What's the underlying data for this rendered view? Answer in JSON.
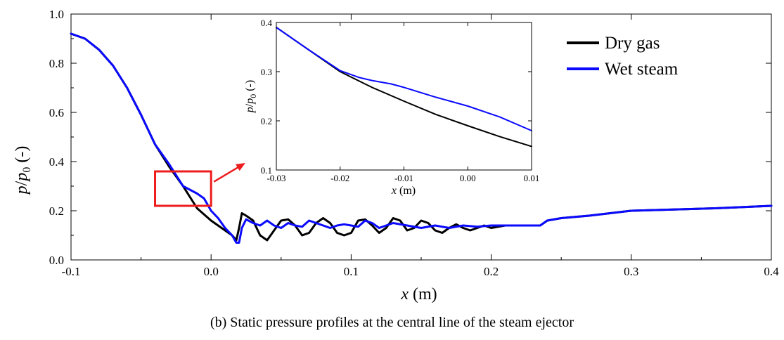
{
  "caption": "(b) Static pressure profiles at the central line of the steam ejector",
  "colors": {
    "dry_gas": "#000000",
    "wet_steam": "#0a0aff",
    "highlight": "#ee1c1c"
  },
  "chart_data": [
    {
      "type": "line",
      "panel": "main",
      "xlabel_var": "x",
      "xlabel_unit": " (m)",
      "ylabel_p": "p",
      "ylabel_slash": "/",
      "ylabel_p0": "p",
      "ylabel_sub": "0",
      "ylabel_unit": " (-)",
      "xlim": [
        -0.1,
        0.4
      ],
      "ylim": [
        0.0,
        1.0
      ],
      "xticks": [
        -0.1,
        0.0,
        0.1,
        0.2,
        0.3,
        0.4
      ],
      "xtick_labels": [
        "-0.1",
        "0.0",
        "0.1",
        "0.2",
        "0.3",
        "0.4"
      ],
      "yticks": [
        0.0,
        0.2,
        0.4,
        0.6,
        0.8,
        1.0
      ],
      "ytick_labels": [
        "0.0",
        "0.2",
        "0.4",
        "0.6",
        "0.8",
        "1.0"
      ],
      "legend_position": "top-right",
      "series": [
        {
          "name": "Dry gas",
          "color": "#000000",
          "points": [
            [
              -0.1,
              0.92
            ],
            [
              -0.09,
              0.9
            ],
            [
              -0.08,
              0.855
            ],
            [
              -0.07,
              0.79
            ],
            [
              -0.06,
              0.7
            ],
            [
              -0.05,
              0.59
            ],
            [
              -0.04,
              0.47
            ],
            [
              -0.03,
              0.38
            ],
            [
              -0.02,
              0.3
            ],
            [
              -0.01,
              0.21
            ],
            [
              0.0,
              0.16
            ],
            [
              0.01,
              0.12
            ],
            [
              0.015,
              0.1
            ],
            [
              0.018,
              0.08
            ],
            [
              0.02,
              0.13
            ],
            [
              0.022,
              0.19
            ],
            [
              0.025,
              0.18
            ],
            [
              0.03,
              0.16
            ],
            [
              0.035,
              0.1
            ],
            [
              0.04,
              0.08
            ],
            [
              0.045,
              0.12
            ],
            [
              0.05,
              0.16
            ],
            [
              0.055,
              0.165
            ],
            [
              0.06,
              0.14
            ],
            [
              0.065,
              0.1
            ],
            [
              0.07,
              0.11
            ],
            [
              0.075,
              0.15
            ],
            [
              0.08,
              0.17
            ],
            [
              0.085,
              0.15
            ],
            [
              0.09,
              0.11
            ],
            [
              0.095,
              0.1
            ],
            [
              0.1,
              0.11
            ],
            [
              0.105,
              0.16
            ],
            [
              0.11,
              0.165
            ],
            [
              0.115,
              0.14
            ],
            [
              0.12,
              0.11
            ],
            [
              0.125,
              0.13
            ],
            [
              0.13,
              0.17
            ],
            [
              0.135,
              0.16
            ],
            [
              0.14,
              0.12
            ],
            [
              0.145,
              0.13
            ],
            [
              0.15,
              0.16
            ],
            [
              0.155,
              0.15
            ],
            [
              0.16,
              0.12
            ],
            [
              0.165,
              0.11
            ],
            [
              0.17,
              0.13
            ],
            [
              0.175,
              0.145
            ],
            [
              0.18,
              0.13
            ],
            [
              0.185,
              0.12
            ],
            [
              0.19,
              0.13
            ],
            [
              0.195,
              0.14
            ],
            [
              0.2,
              0.13
            ],
            [
              0.21,
              0.14
            ],
            [
              0.22,
              0.14
            ],
            [
              0.23,
              0.14
            ],
            [
              0.235,
              0.14
            ],
            [
              0.24,
              0.16
            ],
            [
              0.25,
              0.17
            ],
            [
              0.27,
              0.18
            ],
            [
              0.3,
              0.2
            ],
            [
              0.33,
              0.205
            ],
            [
              0.36,
              0.21
            ],
            [
              0.4,
              0.22
            ]
          ]
        },
        {
          "name": "Wet steam",
          "color": "#0a0aff",
          "points": [
            [
              -0.1,
              0.92
            ],
            [
              -0.09,
              0.9
            ],
            [
              -0.08,
              0.855
            ],
            [
              -0.07,
              0.79
            ],
            [
              -0.06,
              0.7
            ],
            [
              -0.05,
              0.59
            ],
            [
              -0.04,
              0.47
            ],
            [
              -0.03,
              0.39
            ],
            [
              -0.02,
              0.3
            ],
            [
              -0.01,
              0.27
            ],
            [
              -0.005,
              0.25
            ],
            [
              0.0,
              0.2
            ],
            [
              0.005,
              0.17
            ],
            [
              0.01,
              0.13
            ],
            [
              0.015,
              0.1
            ],
            [
              0.018,
              0.07
            ],
            [
              0.02,
              0.07
            ],
            [
              0.022,
              0.13
            ],
            [
              0.025,
              0.165
            ],
            [
              0.03,
              0.15
            ],
            [
              0.035,
              0.14
            ],
            [
              0.04,
              0.16
            ],
            [
              0.045,
              0.14
            ],
            [
              0.05,
              0.13
            ],
            [
              0.055,
              0.15
            ],
            [
              0.06,
              0.14
            ],
            [
              0.065,
              0.135
            ],
            [
              0.07,
              0.16
            ],
            [
              0.075,
              0.15
            ],
            [
              0.08,
              0.14
            ],
            [
              0.085,
              0.13
            ],
            [
              0.09,
              0.14
            ],
            [
              0.095,
              0.145
            ],
            [
              0.1,
              0.14
            ],
            [
              0.105,
              0.135
            ],
            [
              0.11,
              0.16
            ],
            [
              0.115,
              0.15
            ],
            [
              0.12,
              0.13
            ],
            [
              0.125,
              0.14
            ],
            [
              0.13,
              0.15
            ],
            [
              0.14,
              0.14
            ],
            [
              0.15,
              0.13
            ],
            [
              0.16,
              0.14
            ],
            [
              0.17,
              0.13
            ],
            [
              0.18,
              0.14
            ],
            [
              0.19,
              0.135
            ],
            [
              0.2,
              0.14
            ],
            [
              0.21,
              0.14
            ],
            [
              0.22,
              0.14
            ],
            [
              0.23,
              0.14
            ],
            [
              0.235,
              0.14
            ],
            [
              0.24,
              0.16
            ],
            [
              0.25,
              0.17
            ],
            [
              0.27,
              0.18
            ],
            [
              0.3,
              0.2
            ],
            [
              0.33,
              0.205
            ],
            [
              0.36,
              0.21
            ],
            [
              0.4,
              0.22
            ]
          ]
        }
      ]
    },
    {
      "type": "line",
      "panel": "inset",
      "xlabel_var": "x",
      "xlabel_unit": " (m)",
      "ylabel_p": "p",
      "ylabel_slash": "/",
      "ylabel_p0": "p",
      "ylabel_sub": "0",
      "ylabel_unit": " (-)",
      "xlim": [
        -0.03,
        0.01
      ],
      "ylim": [
        0.1,
        0.4
      ],
      "xticks": [
        -0.03,
        -0.02,
        -0.01,
        0.0,
        0.01
      ],
      "xtick_labels": [
        "-0.03",
        "-0.02",
        "-0.01",
        "0.00",
        "0.01"
      ],
      "yticks": [
        0.1,
        0.2,
        0.3,
        0.4
      ],
      "ytick_labels": [
        "0.1",
        "0.2",
        "0.3",
        "0.4"
      ],
      "zoom_region": {
        "x": [
          -0.04,
          0.0
        ],
        "y": [
          0.22,
          0.36
        ]
      },
      "series": [
        {
          "name": "Dry gas",
          "color": "#000000",
          "points": [
            [
              -0.03,
              0.39
            ],
            [
              -0.025,
              0.345
            ],
            [
              -0.02,
              0.3
            ],
            [
              -0.015,
              0.268
            ],
            [
              -0.01,
              0.24
            ],
            [
              -0.005,
              0.213
            ],
            [
              0.0,
              0.19
            ],
            [
              0.005,
              0.168
            ],
            [
              0.01,
              0.148
            ]
          ]
        },
        {
          "name": "Wet steam",
          "color": "#0a0aff",
          "points": [
            [
              -0.03,
              0.39
            ],
            [
              -0.025,
              0.345
            ],
            [
              -0.02,
              0.302
            ],
            [
              -0.017,
              0.288
            ],
            [
              -0.015,
              0.282
            ],
            [
              -0.012,
              0.275
            ],
            [
              -0.01,
              0.268
            ],
            [
              -0.005,
              0.248
            ],
            [
              0.0,
              0.23
            ],
            [
              0.005,
              0.208
            ],
            [
              0.01,
              0.18
            ]
          ]
        }
      ]
    }
  ]
}
